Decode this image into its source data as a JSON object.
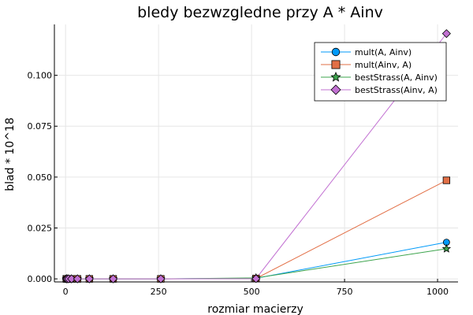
{
  "chart_data": {
    "type": "line",
    "title": "bledy bezwzgledne przy A * Ainv",
    "xlabel": "rozmiar macierzy",
    "ylabel": "blad * 10^18",
    "xlim": [
      -30,
      1055
    ],
    "ylim": [
      -0.0015,
      0.125
    ],
    "xticks": [
      0,
      250,
      500,
      750,
      1000
    ],
    "yticks": [
      0.0,
      0.025,
      0.05,
      0.075,
      0.1
    ],
    "xtick_labels": [
      "0",
      "250",
      "500",
      "750",
      "1000"
    ],
    "ytick_labels": [
      "0.000",
      "0.025",
      "0.050",
      "0.075",
      "0.100"
    ],
    "grid": true,
    "legend_position": "top-right",
    "x": [
      2,
      4,
      8,
      16,
      32,
      64,
      128,
      256,
      512,
      1024
    ],
    "series": [
      {
        "name": "mult(A, Ainv)",
        "color": "#009af9",
        "marker": "circle",
        "values": [
          0,
          0,
          0,
          0,
          0,
          0,
          0,
          0,
          0.0003,
          0.018
        ]
      },
      {
        "name": "mult(Ainv, A)",
        "color": "#e26f46",
        "marker": "square",
        "values": [
          0,
          0,
          0,
          0,
          0,
          0,
          0,
          0,
          0.0002,
          0.0484
        ]
      },
      {
        "name": "bestStrass(A, Ainv)",
        "color": "#3da44d",
        "marker": "star",
        "values": [
          0,
          0,
          0,
          0,
          0,
          0,
          0,
          0,
          0.0005,
          0.0148
        ]
      },
      {
        "name": "bestStrass(Ainv, A)",
        "color": "#c271d2",
        "marker": "diamond",
        "values": [
          0,
          0,
          0,
          0,
          0,
          0,
          0,
          0,
          0.0001,
          0.1205
        ]
      }
    ]
  }
}
